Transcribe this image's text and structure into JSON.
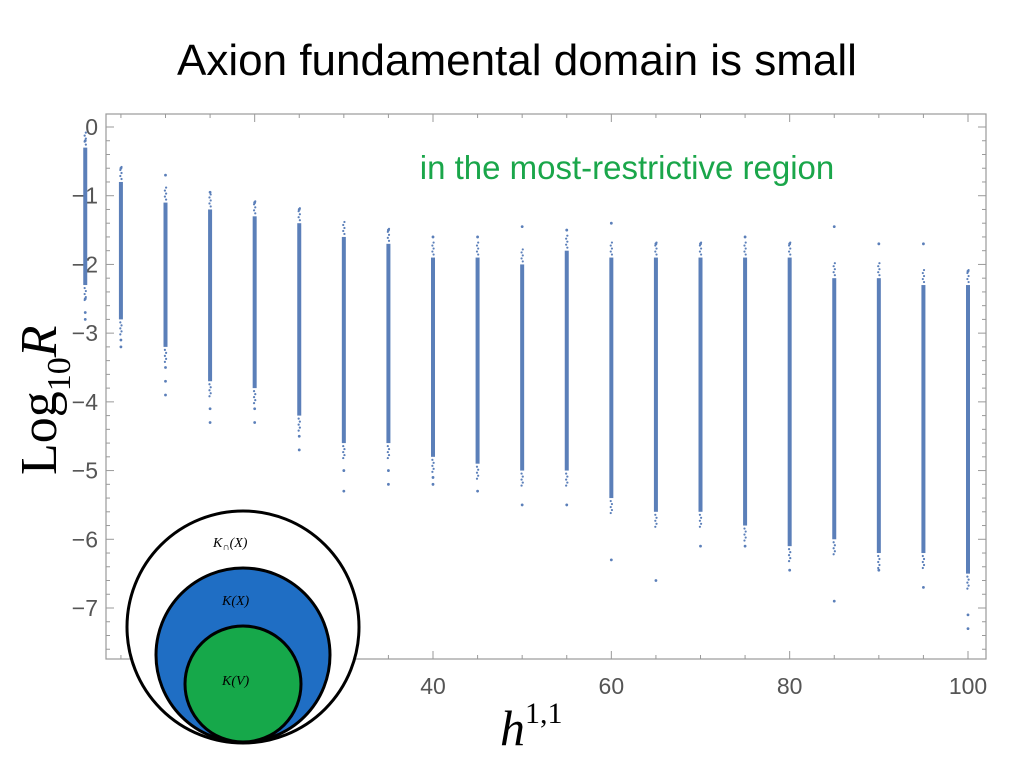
{
  "slide": {
    "title": "Axion fundamental domain is small"
  },
  "chart_data": {
    "type": "scatter",
    "title": "",
    "annotation": "in the most-restrictive region",
    "xlabel": "h",
    "xlabel_sup": "1,1",
    "ylabel": "Log",
    "ylabel_sub": "10",
    "ylabel_symbol": "R",
    "xlim": [
      0,
      102
    ],
    "ylim": [
      -7.8,
      0.15
    ],
    "x_ticks": [
      40,
      60,
      80,
      100
    ],
    "y_ticks": [
      0,
      -1,
      -2,
      -3,
      -4,
      -5,
      -6,
      -7
    ],
    "point_color": "#5b7fb9",
    "series": [
      {
        "x": 1,
        "bar": [
          -2.3,
          -0.3
        ],
        "scatter": [
          -2.5,
          -2.7,
          -2.8,
          -0.2
        ]
      },
      {
        "x": 5,
        "bar": [
          -2.8,
          -0.8
        ],
        "scatter": [
          -3.1,
          -3.2,
          -0.6
        ]
      },
      {
        "x": 10,
        "bar": [
          -3.2,
          -1.1
        ],
        "scatter": [
          -3.5,
          -3.7,
          -3.9,
          -0.7
        ]
      },
      {
        "x": 15,
        "bar": [
          -3.7,
          -1.2
        ],
        "scatter": [
          -4.1,
          -4.3,
          -0.95
        ]
      },
      {
        "x": 20,
        "bar": [
          -3.8,
          -1.3
        ],
        "scatter": [
          -4.1,
          -4.3,
          -1.1
        ]
      },
      {
        "x": 25,
        "bar": [
          -4.2,
          -1.4
        ],
        "scatter": [
          -4.5,
          -4.7,
          -1.2
        ]
      },
      {
        "x": 30,
        "bar": [
          -4.6,
          -1.6
        ],
        "scatter": [
          -5.0,
          -5.3
        ]
      },
      {
        "x": 35,
        "bar": [
          -4.6,
          -1.7
        ],
        "scatter": [
          -5.0,
          -5.2,
          -1.5
        ]
      },
      {
        "x": 40,
        "bar": [
          -4.8,
          -1.9
        ],
        "scatter": [
          -5.1,
          -5.2,
          -1.6
        ]
      },
      {
        "x": 45,
        "bar": [
          -4.9,
          -1.9
        ],
        "scatter": [
          -5.3,
          -1.6
        ]
      },
      {
        "x": 50,
        "bar": [
          -5.0,
          -2.0
        ],
        "scatter": [
          -5.5,
          -1.45
        ]
      },
      {
        "x": 55,
        "bar": [
          -5.0,
          -1.8
        ],
        "scatter": [
          -5.5,
          -1.5
        ]
      },
      {
        "x": 60,
        "bar": [
          -5.4,
          -1.9
        ],
        "scatter": [
          -6.3,
          -1.4
        ]
      },
      {
        "x": 65,
        "bar": [
          -5.6,
          -1.9
        ],
        "scatter": [
          -6.6,
          -1.7
        ]
      },
      {
        "x": 70,
        "bar": [
          -5.6,
          -1.9
        ],
        "scatter": [
          -6.1,
          -1.7
        ]
      },
      {
        "x": 75,
        "bar": [
          -5.8,
          -1.9
        ],
        "scatter": [
          -6.1,
          -1.6
        ]
      },
      {
        "x": 80,
        "bar": [
          -6.1,
          -1.9
        ],
        "scatter": [
          -6.45,
          -1.7
        ]
      },
      {
        "x": 85,
        "bar": [
          -6.0,
          -2.2
        ],
        "scatter": [
          -6.9,
          -1.45
        ]
      },
      {
        "x": 90,
        "bar": [
          -6.2,
          -2.2
        ],
        "scatter": [
          -6.45,
          -1.7
        ]
      },
      {
        "x": 95,
        "bar": [
          -6.2,
          -2.3
        ],
        "scatter": [
          -6.7,
          -1.7
        ]
      },
      {
        "x": 100,
        "bar": [
          -6.5,
          -2.3
        ],
        "scatter": [
          -7.1,
          -7.3,
          -2.1
        ]
      }
    ]
  },
  "inset": {
    "outer_label": "K",
    "outer_label_sub": "∩",
    "outer_label_arg": "(X)",
    "middle_label": "K",
    "middle_label_arg": "(X)",
    "inner_label": "K",
    "inner_label_arg": "(V)",
    "outer_color": "#ffffff",
    "middle_color": "#1f6ec4",
    "inner_color": "#16a84a"
  }
}
